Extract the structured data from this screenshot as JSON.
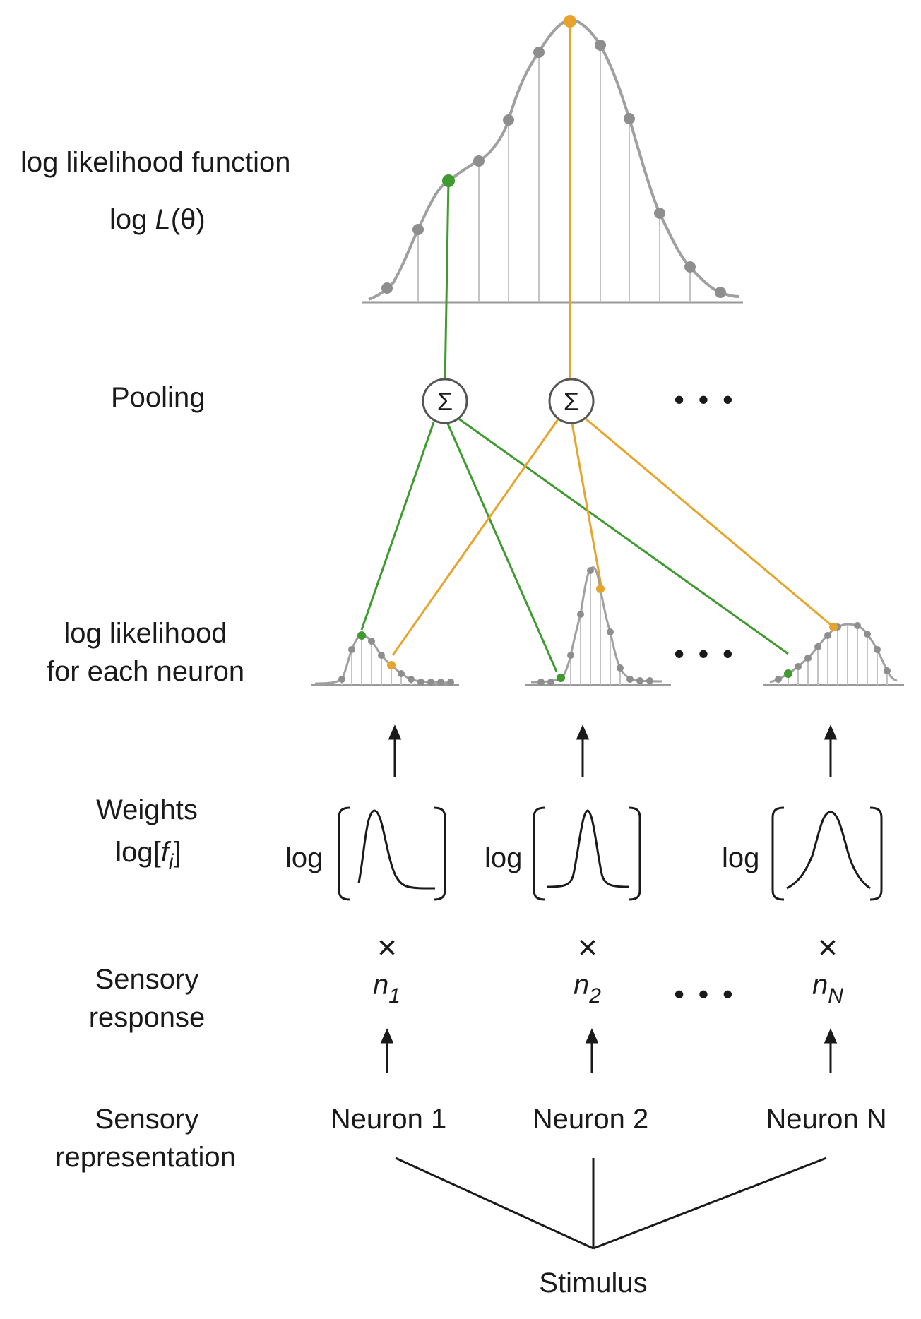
{
  "labels": {
    "log_likelihood_function": "log likelihood function",
    "log_L_prefix": "log",
    "log_L_symbol": "L",
    "log_L_arg": "(θ)",
    "pooling": "Pooling",
    "log_likelihood_each_line1": "log likelihood",
    "log_likelihood_each_line2": "for each neuron",
    "weights": "Weights",
    "weights_formula_prefix": "log[",
    "weights_formula_var": "f",
    "weights_formula_sub": "i",
    "weights_formula_suffix": "]",
    "sensory_response_line1": "Sensory",
    "sensory_response_line2": "response",
    "sensory_representation_line1": "Sensory",
    "sensory_representation_line2": "representation",
    "stimulus": "Stimulus"
  },
  "pooling_nodes": [
    "Σ",
    "Σ"
  ],
  "ellipsis": "• • •",
  "neurons": [
    {
      "name": "Neuron 1",
      "log_label": "log",
      "response_var": "n",
      "response_sub": "1",
      "times": "×"
    },
    {
      "name": "Neuron 2",
      "log_label": "log",
      "response_var": "n",
      "response_sub": "2",
      "times": "×"
    },
    {
      "name": "Neuron N",
      "log_label": "log",
      "response_var": "n",
      "response_sub": "N",
      "times": "×"
    }
  ],
  "colors": {
    "green": "#3f9a2f",
    "orange": "#e6a52a",
    "gray_curve": "#a0a0a0",
    "gray_dot": "#8e8e8e",
    "axis": "#9a9a9a",
    "ink": "#1a1a1a"
  }
}
